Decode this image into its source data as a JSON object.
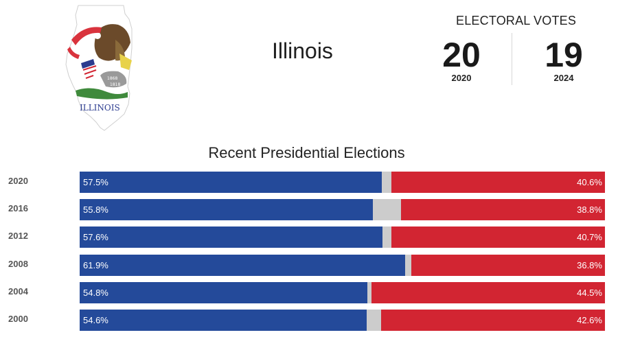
{
  "state": {
    "name": "Illinois",
    "seal_text": "ILLINOIS",
    "seal_years": [
      "1868",
      "1818"
    ]
  },
  "electoral_votes": {
    "title": "ELECTORAL VOTES",
    "items": [
      {
        "value": "20",
        "year": "2020"
      },
      {
        "value": "19",
        "year": "2024"
      }
    ]
  },
  "elections": {
    "title": "Recent Presidential Elections",
    "rows": [
      {
        "year": "2020",
        "dem": 57.5,
        "rep": 40.6,
        "dem_label": "57.5%",
        "rep_label": "40.6%"
      },
      {
        "year": "2016",
        "dem": 55.8,
        "rep": 38.8,
        "dem_label": "55.8%",
        "rep_label": "38.8%"
      },
      {
        "year": "2012",
        "dem": 57.6,
        "rep": 40.7,
        "dem_label": "57.6%",
        "rep_label": "40.7%"
      },
      {
        "year": "2008",
        "dem": 61.9,
        "rep": 36.8,
        "dem_label": "61.9%",
        "rep_label": "36.8%"
      },
      {
        "year": "2004",
        "dem": 54.8,
        "rep": 44.5,
        "dem_label": "54.8%",
        "rep_label": "44.5%"
      },
      {
        "year": "2000",
        "dem": 54.6,
        "rep": 42.6,
        "dem_label": "54.6%",
        "rep_label": "42.6%"
      }
    ]
  },
  "colors": {
    "dem": "#244a9a",
    "rep": "#d22532",
    "other": "#cccccc"
  }
}
